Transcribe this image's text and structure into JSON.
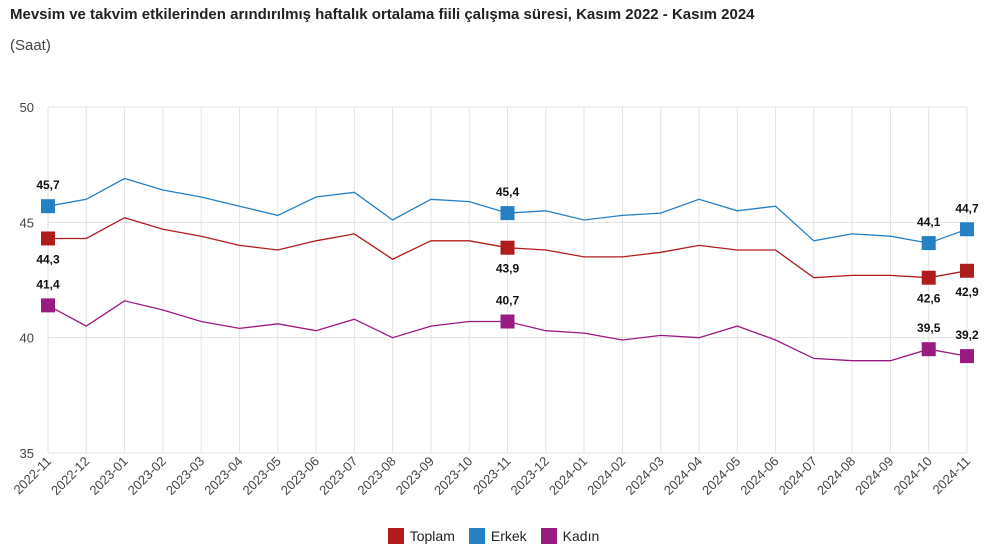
{
  "title": "Mevsim ve takvim etkilerinden arındırılmış haftalık ortalama fiili çalışma süresi, Kasım 2022 - Kasım 2024",
  "subtitle": "(Saat)",
  "chart_data": {
    "type": "line",
    "categories": [
      "2022-11",
      "2022-12",
      "2023-01",
      "2023-02",
      "2023-03",
      "2023-04",
      "2023-05",
      "2023-06",
      "2023-07",
      "2023-08",
      "2023-09",
      "2023-10",
      "2023-11",
      "2023-12",
      "2024-01",
      "2024-02",
      "2024-03",
      "2024-04",
      "2024-05",
      "2024-06",
      "2024-07",
      "2024-08",
      "2024-09",
      "2024-10",
      "2024-11"
    ],
    "ylim": [
      35,
      50
    ],
    "yticks": [
      35,
      40,
      45,
      50
    ],
    "grid": true,
    "legend_position": "bottom",
    "series": [
      {
        "name": "Toplam",
        "color": "#b01c1c",
        "values": [
          44.3,
          44.3,
          45.2,
          44.7,
          44.4,
          44.0,
          43.8,
          44.2,
          44.5,
          43.4,
          44.2,
          44.2,
          43.9,
          43.8,
          43.5,
          43.5,
          43.7,
          44.0,
          43.8,
          43.8,
          42.6,
          42.7,
          42.7,
          42.6,
          42.9
        ],
        "labels": [
          {
            "index": 0,
            "text": "44,3",
            "pos": "below"
          },
          {
            "index": 12,
            "text": "43,9",
            "pos": "below"
          },
          {
            "index": 23,
            "text": "42,6",
            "pos": "below"
          },
          {
            "index": 24,
            "text": "42,9",
            "pos": "below"
          }
        ]
      },
      {
        "name": "Erkek",
        "color": "#2580c4",
        "values": [
          45.7,
          46.0,
          46.9,
          46.4,
          46.1,
          45.7,
          45.3,
          46.1,
          46.3,
          45.1,
          46.0,
          45.9,
          45.4,
          45.5,
          45.1,
          45.3,
          45.4,
          46.0,
          45.5,
          45.7,
          44.2,
          44.5,
          44.4,
          44.1,
          44.7
        ],
        "labels": [
          {
            "index": 0,
            "text": "45,7",
            "pos": "above"
          },
          {
            "index": 12,
            "text": "45,4",
            "pos": "above"
          },
          {
            "index": 23,
            "text": "44,1",
            "pos": "above"
          },
          {
            "index": 24,
            "text": "44,7",
            "pos": "above"
          }
        ]
      },
      {
        "name": "Kadın",
        "color": "#991a80",
        "values": [
          41.4,
          40.5,
          41.6,
          41.2,
          40.7,
          40.4,
          40.6,
          40.3,
          40.8,
          40.0,
          40.5,
          40.7,
          40.7,
          40.3,
          40.2,
          39.9,
          40.1,
          40.0,
          40.5,
          39.9,
          39.1,
          39.0,
          39.0,
          39.5,
          39.2
        ],
        "labels": [
          {
            "index": 0,
            "text": "41,4",
            "pos": "above"
          },
          {
            "index": 12,
            "text": "40,7",
            "pos": "above"
          },
          {
            "index": 23,
            "text": "39,5",
            "pos": "above"
          },
          {
            "index": 24,
            "text": "39,2",
            "pos": "above"
          }
        ]
      }
    ],
    "marker_indices": [
      0,
      12,
      23,
      24
    ]
  }
}
